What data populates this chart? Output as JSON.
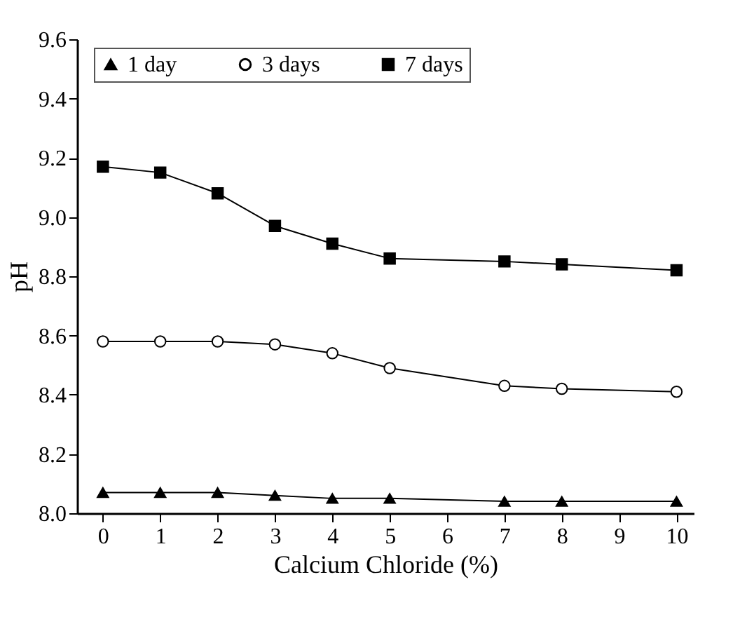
{
  "chart_data": {
    "type": "line",
    "xlabel": "Calcium Chloride (%)",
    "ylabel": "pH",
    "x": [
      0,
      1,
      2,
      3,
      4,
      5,
      7,
      8,
      10
    ],
    "xlim": [
      -0.45,
      10.3
    ],
    "xticks": [
      0,
      1,
      2,
      3,
      4,
      5,
      6,
      7,
      8,
      9,
      10
    ],
    "ylim": [
      8.0,
      9.6
    ],
    "yticks": [
      {
        "value": 8,
        "label": "8.0"
      },
      8.2,
      8.4,
      8.6,
      8.8,
      {
        "value": 9,
        "label": "9.0"
      },
      9.2,
      9.4,
      9.6
    ],
    "grid": false,
    "legend": "top",
    "line_style": "solid",
    "series": [
      {
        "name": "1 day",
        "color": "#000000",
        "marker": "triangle",
        "values": [
          8.07,
          8.07,
          8.07,
          8.06,
          8.05,
          8.05,
          8.04,
          8.04,
          8.04
        ]
      },
      {
        "name": "3 days",
        "color": "#000000",
        "marker": "circle",
        "values": [
          8.58,
          8.58,
          8.58,
          8.57,
          8.54,
          8.49,
          8.43,
          8.42,
          8.41
        ]
      },
      {
        "name": "7 days",
        "color": "#000000",
        "marker": "square",
        "values": [
          9.17,
          9.15,
          9.08,
          8.97,
          8.91,
          8.86,
          8.85,
          8.84,
          8.82
        ]
      }
    ]
  }
}
